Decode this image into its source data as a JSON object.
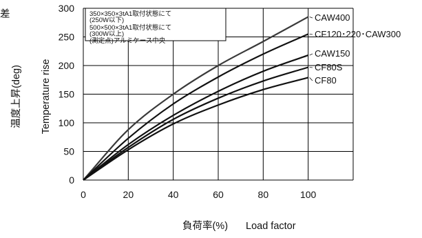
{
  "chart_data": {
    "type": "line",
    "x": [
      0,
      20,
      40,
      60,
      80,
      100
    ],
    "xlim": [
      0,
      120
    ],
    "ylim": [
      0,
      300
    ],
    "xticks": [
      0,
      20,
      40,
      60,
      80,
      100
    ],
    "yticks": [
      0,
      50,
      100,
      150,
      200,
      250,
      300
    ],
    "xlabel_jp": "負荷率(%)",
    "xlabel_en": "Load factor",
    "ylabel_jp": "温度上昇(deg)",
    "ylabel_en": "Temperature rise",
    "ylabel_cut": "差",
    "grid": true,
    "series": [
      {
        "name": "CAW400",
        "values": [
          0,
          88,
          150,
          200,
          242,
          285
        ]
      },
      {
        "name": "CF120･220･CAW300",
        "values": [
          0,
          73,
          133,
          180,
          220,
          255
        ]
      },
      {
        "name": "CAW150",
        "values": [
          0,
          62,
          113,
          155,
          190,
          218
        ]
      },
      {
        "name": "CF80S",
        "values": [
          0,
          57,
          106,
          143,
          173,
          197
        ]
      },
      {
        "name": "CF80",
        "values": [
          0,
          53,
          98,
          131,
          158,
          179
        ]
      }
    ],
    "annotation": [
      "350×350×3tA1取付状態にて",
      "(250W以下)",
      "500×500×3tA1取付状態にて",
      "(300W以上)",
      "(測定点)アルミケース中央"
    ]
  }
}
